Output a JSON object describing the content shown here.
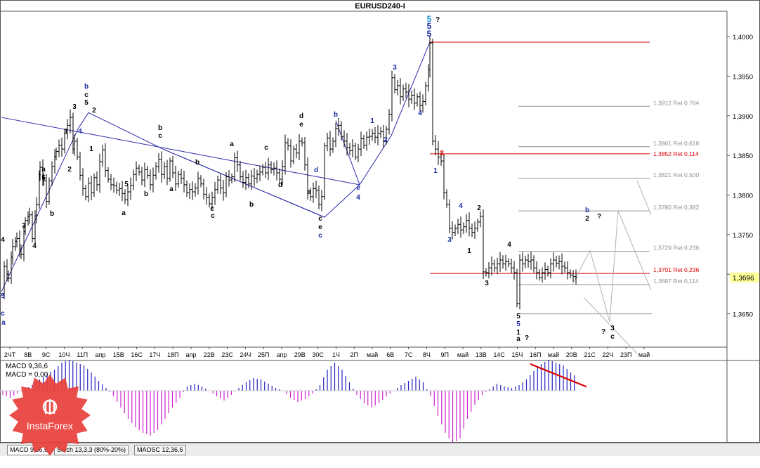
{
  "window": {
    "title": "EURUSD240-I"
  },
  "price_axis": {
    "ticks": [
      "1,4000",
      "1,3950",
      "1,3900",
      "1,3850",
      "1,3800",
      "1,3750",
      "1,3700",
      "1,3650"
    ],
    "current_price": "1,3696"
  },
  "date_axis": {
    "labels": [
      "2ЧТ",
      "8В",
      "9С",
      "10Ч",
      "11П",
      "aпр",
      "15В",
      "16С",
      "17Ч",
      "18П",
      "aпр",
      "22В",
      "23С",
      "24Ч",
      "25П",
      "aпр",
      "29В",
      "30С",
      "1Ч",
      "2П",
      "май",
      "6В",
      "7С",
      "8Ч",
      "9П",
      "май",
      "13В",
      "14С",
      "15Ч",
      "16П",
      "май",
      "20В",
      "21С",
      "22Ч",
      "23П",
      "май"
    ]
  },
  "levels": [
    {
      "label": "1,3912 Ret 0,764",
      "color": "#909090"
    },
    {
      "label": "1,3861 Ret 0,618",
      "color": "#909090"
    },
    {
      "label": "1,3852 Ret 0,114",
      "color": "#dd0000"
    },
    {
      "label": "1,3821 Ret 0,500",
      "color": "#909090"
    },
    {
      "label": "1,3780 Ret 0,382",
      "color": "#909090"
    },
    {
      "label": "1,3729 Ret 0,236",
      "color": "#909090"
    },
    {
      "label": "1,3701 Ret 0,236",
      "color": "#dd0000"
    },
    {
      "label": "1,3687 Ret 0,114",
      "color": "#909090"
    }
  ],
  "wave_labels": [
    {
      "t": "5",
      "c": "#1a8fd8"
    },
    {
      "t": "5",
      "c": "#1a2aa0"
    },
    {
      "t": "5",
      "c": "#1a2aa0"
    },
    {
      "t": "?",
      "c": "#000"
    },
    {
      "t": "b",
      "c": "#1a2aa0"
    },
    {
      "t": "c",
      "c": "#000"
    },
    {
      "t": "5",
      "c": "#000"
    },
    {
      "t": "3",
      "c": "#000"
    },
    {
      "t": "2",
      "c": "#000"
    },
    {
      "t": "1",
      "c": "#000"
    },
    {
      "t": "4",
      "c": "#1a2aa0"
    },
    {
      "t": "1",
      "c": "#000"
    },
    {
      "t": "2",
      "c": "#000"
    },
    {
      "t": "a",
      "c": "#000"
    },
    {
      "t": "5",
      "c": "#000"
    },
    {
      "t": "b",
      "c": "#000"
    },
    {
      "t": "4",
      "c": "#000"
    },
    {
      "t": "3",
      "c": "#000"
    },
    {
      "t": "4",
      "c": "#000"
    },
    {
      "t": "5",
      "c": "#1a2aa0"
    },
    {
      "t": "c",
      "c": "#1a2aa0"
    },
    {
      "t": "a",
      "c": "#1a2aa0"
    },
    {
      "t": "4",
      "c": "#000"
    },
    {
      "t": "3",
      "c": "#000"
    },
    {
      "t": "2",
      "c": "#000"
    },
    {
      "t": "a",
      "c": "#000"
    },
    {
      "t": "4",
      "c": "#000"
    },
    {
      "t": "3",
      "c": "#000"
    },
    {
      "t": "5",
      "c": "#000"
    },
    {
      "t": "a",
      "c": "#000"
    },
    {
      "t": "b",
      "c": "#000"
    },
    {
      "t": "b",
      "c": "#000"
    },
    {
      "t": "c",
      "c": "#000"
    },
    {
      "t": "a",
      "c": "#000"
    },
    {
      "t": "b",
      "c": "#000"
    },
    {
      "t": "c",
      "c": "#000"
    },
    {
      "t": "c",
      "c": "#000"
    },
    {
      "t": "a",
      "c": "#000"
    },
    {
      "t": "b",
      "c": "#000"
    },
    {
      "t": "c",
      "c": "#000"
    },
    {
      "t": "d",
      "c": "#000"
    },
    {
      "t": "d",
      "c": "#000"
    },
    {
      "t": "e",
      "c": "#000"
    },
    {
      "t": "a",
      "c": "#000"
    },
    {
      "t": "b",
      "c": "#1a2aa0"
    },
    {
      "t": "c",
      "c": "#000"
    },
    {
      "t": "e",
      "c": "#000"
    },
    {
      "t": "c",
      "c": "#1a2aa0"
    },
    {
      "t": "d",
      "c": "#1a2aa0"
    },
    {
      "t": "e",
      "c": "#1a2aa0"
    },
    {
      "t": "4",
      "c": "#1a2aa0"
    },
    {
      "t": "1",
      "c": "#1a2aa0"
    },
    {
      "t": "2",
      "c": "#1a2aa0"
    },
    {
      "t": "3",
      "c": "#1a2aa0"
    },
    {
      "t": "4",
      "c": "#1a2aa0"
    },
    {
      "t": "2",
      "c": "#dd0000"
    },
    {
      "t": "1",
      "c": "#1a2aa0"
    },
    {
      "t": "4",
      "c": "#1a2aa0"
    },
    {
      "t": "3",
      "c": "#1a2aa0"
    },
    {
      "t": "2",
      "c": "#000"
    },
    {
      "t": "1",
      "c": "#000"
    },
    {
      "t": "3",
      "c": "#000"
    },
    {
      "t": "4",
      "c": "#000"
    },
    {
      "t": "5",
      "c": "#000"
    },
    {
      "t": "5",
      "c": "#1a2aa0"
    },
    {
      "t": "1",
      "c": "#000"
    },
    {
      "t": "a",
      "c": "#000"
    },
    {
      "t": "?",
      "c": "#000"
    },
    {
      "t": "b",
      "c": "#1a2aa0"
    },
    {
      "t": "2",
      "c": "#000"
    },
    {
      "t": "?",
      "c": "#000"
    },
    {
      "t": "?",
      "c": "#000"
    },
    {
      "t": "3",
      "c": "#000"
    },
    {
      "t": "c",
      "c": "#000"
    }
  ],
  "indicator": {
    "label_line1": "MACD 9,36,6",
    "label_line2": "MACD = 0,00",
    "tabs": [
      "MACD 9,36,6",
      "Stoch 13,3,3 (80%-20%)",
      "MAOSC 12,36,6"
    ],
    "active_tab": 0
  },
  "logo": {
    "text": "InstaForex"
  },
  "colors": {
    "candles": "#000000",
    "wave_lines": "#2a2aaa",
    "red_levels": "#dd0000",
    "grey_levels": "#909090",
    "macd_positive": "#2020c0",
    "macd_negative": "#d020d0",
    "divergence": "#dd0000",
    "current_price_bg": "#ffff99",
    "logo": "#e8413c"
  },
  "chart_data": {
    "type": "candlestick",
    "symbol": "EURUSD240-I",
    "ylim": [
      1.3608,
      1.4032
    ],
    "grid": false,
    "price_path": [
      [
        0,
        1.3675
      ],
      [
        4,
        1.371
      ],
      [
        10,
        1.3695
      ],
      [
        16,
        1.3735
      ],
      [
        22,
        1.3745
      ],
      [
        28,
        1.3725
      ],
      [
        34,
        1.3768
      ],
      [
        40,
        1.3775
      ],
      [
        44,
        1.3745
      ],
      [
        50,
        1.3788
      ],
      [
        55,
        1.3835
      ],
      [
        60,
        1.3818
      ],
      [
        64,
        1.3792
      ],
      [
        68,
        1.3818
      ],
      [
        72,
        1.3836
      ],
      [
        78,
        1.3855
      ],
      [
        82,
        1.3863
      ],
      [
        86,
        1.3858
      ],
      [
        90,
        1.3878
      ],
      [
        94,
        1.3888
      ],
      [
        98,
        1.3898
      ],
      [
        102,
        1.3858
      ],
      [
        104,
        1.3868
      ],
      [
        108,
        1.3848
      ],
      [
        112,
        1.3825
      ],
      [
        116,
        1.3808
      ],
      [
        120,
        1.3798
      ],
      [
        124,
        1.3815
      ],
      [
        128,
        1.3803
      ],
      [
        132,
        1.3822
      ],
      [
        136,
        1.3813
      ],
      [
        140,
        1.3842
      ],
      [
        144,
        1.3857
      ],
      [
        148,
        1.3831
      ],
      [
        152,
        1.382
      ],
      [
        156,
        1.3813
      ],
      [
        160,
        1.3812
      ],
      [
        164,
        1.3806
      ],
      [
        168,
        1.3808
      ],
      [
        172,
        1.3802
      ],
      [
        176,
        1.3794
      ],
      [
        180,
        1.3804
      ],
      [
        184,
        1.3812
      ],
      [
        188,
        1.3826
      ],
      [
        192,
        1.3834
      ],
      [
        196,
        1.3829
      ],
      [
        200,
        1.3819
      ],
      [
        204,
        1.3832
      ],
      [
        208,
        1.3825
      ],
      [
        212,
        1.3813
      ],
      [
        216,
        1.3825
      ],
      [
        220,
        1.3836
      ],
      [
        224,
        1.3845
      ],
      [
        228,
        1.3826
      ],
      [
        232,
        1.3836
      ],
      [
        236,
        1.3821
      ],
      [
        240,
        1.3843
      ],
      [
        244,
        1.3828
      ],
      [
        248,
        1.3814
      ],
      [
        252,
        1.3826
      ],
      [
        256,
        1.3821
      ],
      [
        260,
        1.3813
      ],
      [
        264,
        1.3803
      ],
      [
        268,
        1.3807
      ],
      [
        272,
        1.3804
      ],
      [
        276,
        1.3809
      ],
      [
        280,
        1.3821
      ],
      [
        284,
        1.3814
      ],
      [
        288,
        1.3801
      ],
      [
        292,
        1.3797
      ],
      [
        296,
        1.3789
      ],
      [
        300,
        1.3797
      ],
      [
        304,
        1.3807
      ],
      [
        308,
        1.3819
      ],
      [
        312,
        1.3809
      ],
      [
        316,
        1.3803
      ],
      [
        320,
        1.3823
      ],
      [
        324,
        1.3819
      ],
      [
        328,
        1.3823
      ],
      [
        332,
        1.3847
      ],
      [
        336,
        1.3838
      ],
      [
        340,
        1.3823
      ],
      [
        344,
        1.3816
      ],
      [
        348,
        1.3822
      ],
      [
        352,
        1.3814
      ],
      [
        356,
        1.3824
      ],
      [
        360,
        1.3821
      ],
      [
        364,
        1.3826
      ],
      [
        368,
        1.3829
      ],
      [
        372,
        1.3835
      ],
      [
        376,
        1.3828
      ],
      [
        380,
        1.3838
      ],
      [
        384,
        1.3832
      ],
      [
        388,
        1.3834
      ],
      [
        392,
        1.3828
      ],
      [
        396,
        1.382
      ],
      [
        400,
        1.3836
      ],
      [
        404,
        1.3866
      ],
      [
        408,
        1.3862
      ],
      [
        412,
        1.3843
      ],
      [
        416,
        1.3858
      ],
      [
        420,
        1.3853
      ],
      [
        424,
        1.3868
      ],
      [
        428,
        1.3866
      ],
      [
        432,
        1.3838
      ],
      [
        436,
        1.3804
      ],
      [
        440,
        1.3798
      ],
      [
        444,
        1.3808
      ],
      [
        448,
        1.3806
      ],
      [
        452,
        1.3788
      ],
      [
        456,
        1.3798
      ],
      [
        460,
        1.3862
      ],
      [
        464,
        1.3872
      ],
      [
        468,
        1.3858
      ],
      [
        472,
        1.3868
      ],
      [
        476,
        1.3884
      ],
      [
        480,
        1.3888
      ],
      [
        484,
        1.3874
      ],
      [
        488,
        1.3868
      ],
      [
        492,
        1.386
      ],
      [
        496,
        1.3856
      ],
      [
        500,
        1.3862
      ],
      [
        504,
        1.3848
      ],
      [
        508,
        1.3858
      ],
      [
        512,
        1.3871
      ],
      [
        516,
        1.3863
      ],
      [
        520,
        1.3873
      ],
      [
        524,
        1.3874
      ],
      [
        528,
        1.3878
      ],
      [
        532,
        1.3873
      ],
      [
        536,
        1.3878
      ],
      [
        540,
        1.388
      ],
      [
        544,
        1.3868
      ],
      [
        548,
        1.3883
      ],
      [
        552,
        1.3902
      ],
      [
        556,
        1.3948
      ],
      [
        560,
        1.3933
      ],
      [
        564,
        1.3938
      ],
      [
        568,
        1.3924
      ],
      [
        572,
        1.3934
      ],
      [
        576,
        1.393
      ],
      [
        580,
        1.3921
      ],
      [
        584,
        1.3926
      ],
      [
        588,
        1.3916
      ],
      [
        592,
        1.3924
      ],
      [
        596,
        1.3913
      ],
      [
        600,
        1.3918
      ],
      [
        604,
        1.3938
      ],
      [
        608,
        1.3958
      ],
      [
        610,
        1.3992
      ],
      [
        614,
        1.3868
      ],
      [
        618,
        1.3858
      ],
      [
        622,
        1.3848
      ],
      [
        626,
        1.3843
      ],
      [
        630,
        1.3803
      ],
      [
        634,
        1.3788
      ],
      [
        638,
        1.3758
      ],
      [
        642,
        1.3753
      ],
      [
        646,
        1.3758
      ],
      [
        650,
        1.3763
      ],
      [
        654,
        1.3756
      ],
      [
        658,
        1.376
      ],
      [
        662,
        1.3768
      ],
      [
        666,
        1.3758
      ],
      [
        670,
        1.3753
      ],
      [
        674,
        1.3758
      ],
      [
        678,
        1.3766
      ],
      [
        682,
        1.3773
      ],
      [
        686,
        1.3703
      ],
      [
        690,
        1.3702
      ],
      [
        694,
        1.3708
      ],
      [
        698,
        1.3713
      ],
      [
        702,
        1.3708
      ],
      [
        706,
        1.3713
      ],
      [
        710,
        1.3718
      ],
      [
        714,
        1.3713
      ],
      [
        718,
        1.3716
      ],
      [
        722,
        1.3713
      ],
      [
        726,
        1.3708
      ],
      [
        730,
        1.3702
      ],
      [
        734,
        1.3663
      ],
      [
        738,
        1.3718
      ],
      [
        742,
        1.3713
      ],
      [
        746,
        1.3718
      ],
      [
        750,
        1.3716
      ],
      [
        754,
        1.3718
      ],
      [
        758,
        1.3708
      ],
      [
        762,
        1.3702
      ],
      [
        766,
        1.3696
      ],
      [
        770,
        1.3702
      ],
      [
        774,
        1.3706
      ],
      [
        778,
        1.3702
      ],
      [
        782,
        1.3713
      ],
      [
        786,
        1.3718
      ],
      [
        790,
        1.3714
      ],
      [
        794,
        1.3716
      ],
      [
        798,
        1.371
      ],
      [
        802,
        1.3708
      ],
      [
        806,
        1.3702
      ],
      [
        810,
        1.3699
      ],
      [
        814,
        1.3697
      ],
      [
        818,
        1.3696
      ]
    ],
    "wave_lines": [
      [
        [
          0,
          1.3678
        ],
        [
          110,
          1.3885
        ],
        [
          124,
          1.3904
        ],
        [
          230,
          1.3858
        ],
        [
          460,
          1.3772
        ]
      ],
      [
        [
          0,
          1.3898
        ],
        [
          510,
          1.3813
        ]
      ],
      [
        [
          460,
          1.3772
        ],
        [
          510,
          1.3813
        ],
        [
          555,
          1.3875
        ],
        [
          610,
          1.3993
        ]
      ],
      [
        [
          230,
          1.3858
        ],
        [
          460,
          1.3772
        ]
      ],
      [
        [
          476,
          1.3894
        ],
        [
          510,
          1.3813
        ]
      ]
    ],
    "macd": {
      "zero_line": 0,
      "values": [
        -0.3,
        -0.5,
        -0.2,
        0.1,
        0.4,
        0.8,
        1.2,
        1.5,
        2.0,
        2.2,
        2.0,
        1.8,
        1.3,
        0.7,
        0.2,
        -0.4,
        -1.2,
        -2.0,
        -2.6,
        -3.0,
        -3.2,
        -2.8,
        -2.0,
        -1.2,
        -0.5,
        0.3,
        0.5,
        0.3,
        0.0,
        -0.4,
        -0.7,
        -0.3,
        0.2,
        0.6,
        0.9,
        0.8,
        0.5,
        0.2,
        0.0,
        -0.5,
        -0.8,
        -0.6,
        -0.2,
        0.4,
        1.5,
        2.0,
        1.5,
        0.6,
        -0.3,
        -0.9,
        -1.2,
        -0.9,
        -0.4,
        0.0,
        0.4,
        0.7,
        1.0,
        0.6,
        -0.4,
        -1.8,
        -3.0,
        -3.8,
        -3.4,
        -2.0,
        -1.0,
        -0.3,
        0.1,
        0.5,
        0.3,
        0.2,
        0.4,
        0.8,
        1.4,
        1.9,
        2.2,
        2.0,
        1.8,
        1.3,
        0.9
      ]
    },
    "divergence": [
      [
        755,
        1.0
      ],
      [
        835,
        0.2
      ]
    ]
  }
}
